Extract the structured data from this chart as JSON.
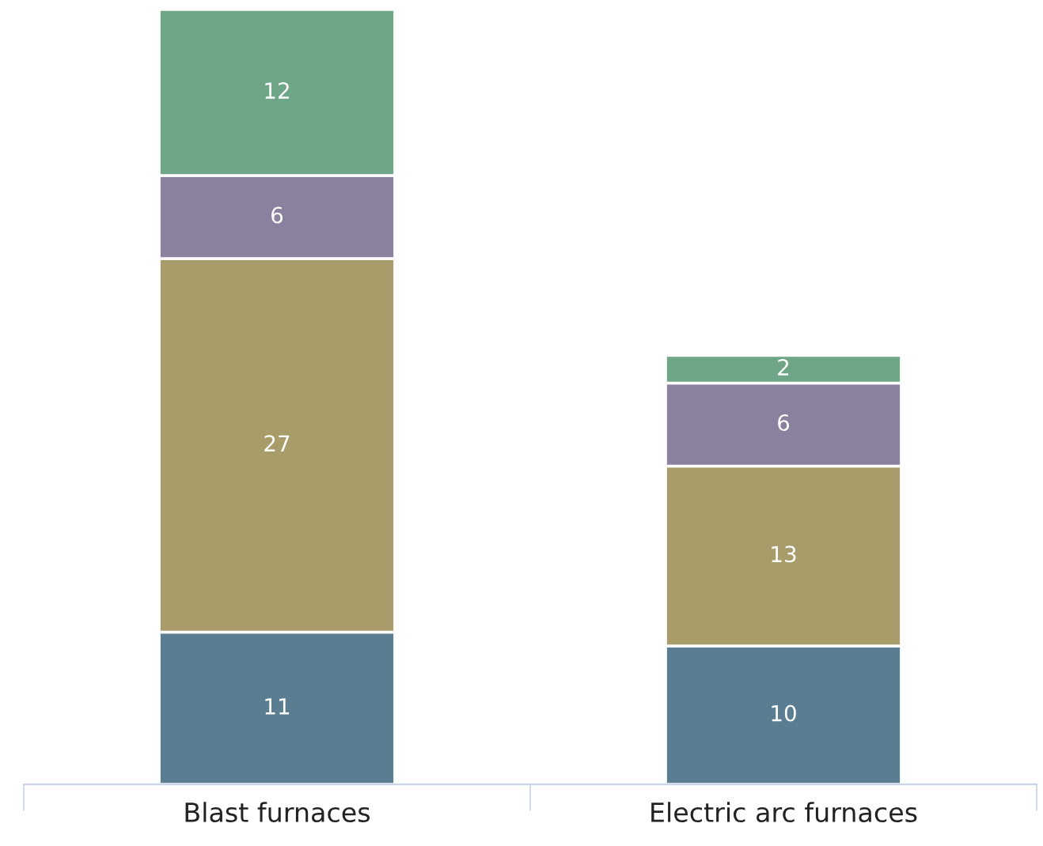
{
  "chart_data": {
    "type": "bar",
    "stacked": true,
    "data_labels": true,
    "categories": [
      "Blast furnaces",
      "Electric arc furnaces"
    ],
    "series": [
      {
        "color": "#5a7d91",
        "values": [
          11,
          10
        ]
      },
      {
        "color": "#a89c6a",
        "values": [
          27,
          13
        ]
      },
      {
        "color": "#8a819f",
        "values": [
          6,
          6
        ]
      },
      {
        "color": "#6fa688",
        "values": [
          12,
          2
        ]
      }
    ]
  }
}
